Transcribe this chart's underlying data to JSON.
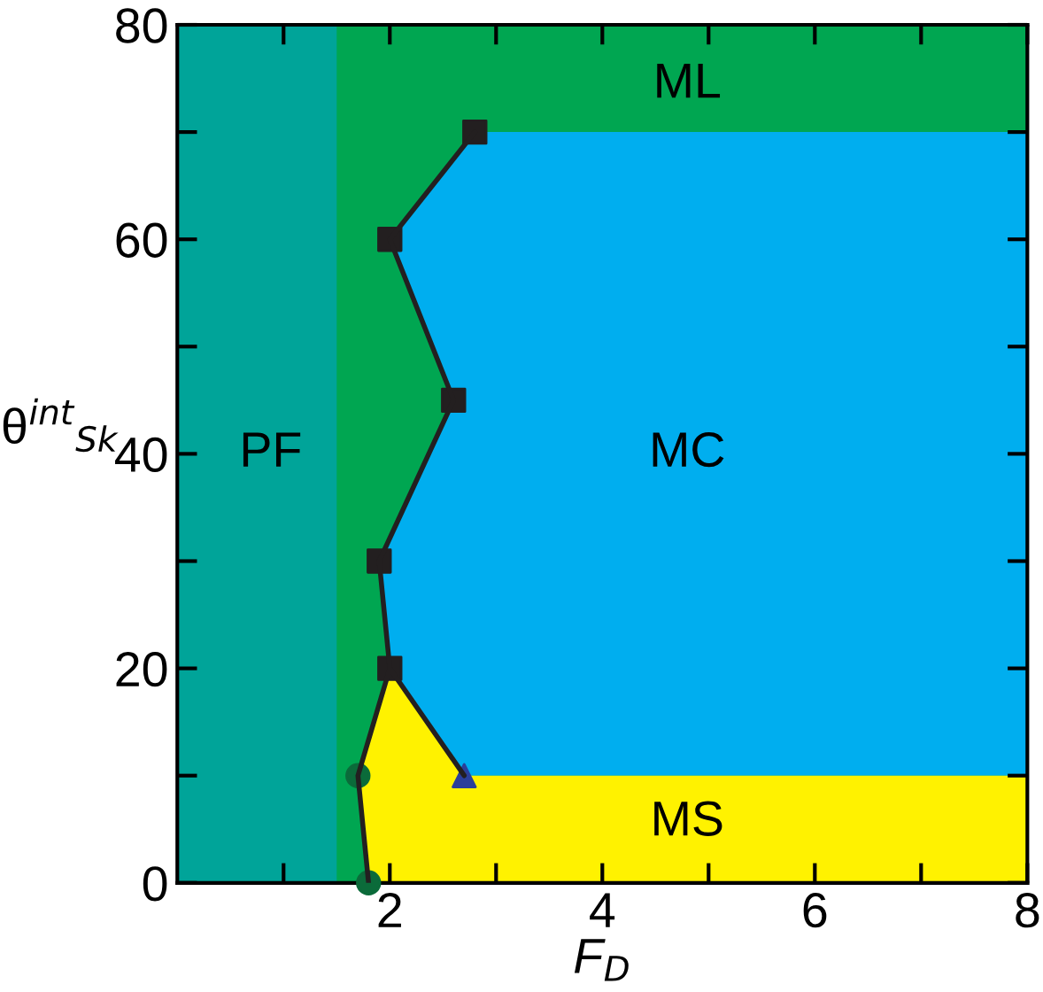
{
  "chart_data": {
    "type": "line",
    "xlabel": "F$_{D}$",
    "ylabel": "θ$^{int}$$_{Sk}$",
    "xlim": [
      0,
      8
    ],
    "ylim": [
      0,
      80
    ],
    "xticks": [
      {
        "value": 1,
        "label": null
      },
      2,
      {
        "value": 3,
        "label": null
      },
      4,
      {
        "value": 5,
        "label": null
      },
      6,
      {
        "value": 7,
        "label": null
      },
      8
    ],
    "yticks": [
      0,
      {
        "value": 10,
        "label": null
      },
      20,
      {
        "value": 30,
        "label": null
      },
      40,
      {
        "value": 50,
        "label": null
      },
      60,
      {
        "value": 70,
        "label": null
      },
      80
    ],
    "grid": false,
    "legend": false,
    "bands": [
      {
        "axis": "y",
        "from": 0,
        "to": 80,
        "color": "#00a651"
      },
      {
        "axis": "x",
        "from": 0,
        "to": 1.5,
        "color": "#00a499"
      }
    ],
    "series": [
      {
        "color": "#231f20",
        "x": [
          1.8,
          1.7,
          2.0,
          2.7,
          2.0,
          1.9,
          2.6,
          2.0,
          2.8
        ],
        "values": [
          0,
          10,
          20,
          10,
          20,
          30,
          45,
          60,
          70
        ],
        "marker": "none"
      },
      {
        "type": "scatter",
        "color": "#231f20",
        "x": [
          2.0,
          1.9,
          2.6,
          2.0,
          2.8
        ],
        "values": [
          20,
          30,
          45,
          60,
          70
        ],
        "marker": "square"
      },
      {
        "type": "scatter",
        "color": "#0b6b3a",
        "x": [
          1.8,
          1.7
        ],
        "values": [
          0,
          10
        ],
        "marker": "circle"
      },
      {
        "type": "scatter",
        "color": "#2b3f9a",
        "x": [
          2.7
        ],
        "values": [
          10
        ],
        "marker": "triangle"
      },
      {
        "type": "area",
        "color": "#00aeef",
        "x": [
          2.7,
          2.0,
          1.9,
          2.6,
          2.0,
          2.8,
          8,
          8
        ],
        "values": [
          10,
          20,
          30,
          45,
          60,
          70,
          70,
          10
        ]
      },
      {
        "type": "area",
        "color": "#fff200",
        "x": [
          1.8,
          1.7,
          2.0,
          2.7,
          8,
          8
        ],
        "values": [
          0,
          10,
          20,
          10,
          10,
          0
        ]
      }
    ],
    "annotations": [
      "PF",
      "ML",
      "MC",
      "MS"
    ]
  }
}
